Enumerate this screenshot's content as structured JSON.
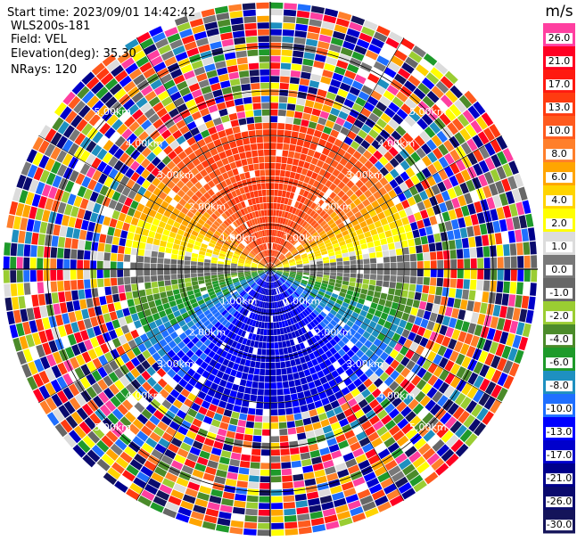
{
  "header": {
    "start_time": "Start time: 2023/09/01 14:42:42",
    "instrument": "WLS200s-181",
    "field": "Field: VEL",
    "elevation": "Elevation(deg): 35.30",
    "nrays": "NRays: 120"
  },
  "chart_data": {
    "type": "heatmap",
    "projection": "polar-ppi",
    "n_rays": 120,
    "max_range_km": 6.0,
    "range_rings_km": [
      1,
      2,
      3,
      4,
      5
    ],
    "range_labels": [
      "1.00km",
      "2.00km",
      "3.00km",
      "4.00km",
      "5.00km"
    ],
    "azimuth_lines_deg": [
      0,
      30,
      60,
      90,
      120,
      150,
      180,
      210,
      240,
      270,
      300,
      330
    ],
    "colorbar": {
      "unit": "m/s",
      "tick_labels": [
        "26.0",
        "21.0",
        "17.0",
        "13.0",
        "10.0",
        "8.0",
        "6.0",
        "4.0",
        "2.0",
        "1.0",
        "0.0",
        "-1.0",
        "-2.0",
        "-4.0",
        "-6.0",
        "-8.0",
        "-10.0",
        "-13.0",
        "-17.0",
        "-21.0",
        "-26.0",
        "-30.0"
      ],
      "colors": [
        "#ff3fa0",
        "#ff0022",
        "#ff1a10",
        "#ff3b10",
        "#ff5a1e",
        "#ff7f2a",
        "#ffa500",
        "#ffd400",
        "#ffff00",
        "#dcdcdc",
        "#787878",
        "#676767",
        "#9acd32",
        "#4b8b2a",
        "#1e9a2a",
        "#1e90c0",
        "#1f6fff",
        "#0000ff",
        "#0000cc",
        "#00008b",
        "#0a0a6e",
        "#14145a"
      ]
    },
    "velocity_pattern": {
      "near_range_km": 3.3,
      "near_field": "positive velocities (red/orange/yellow) in the northern half, near-zero grey band along east-west, negative velocities (green/blue) in the southern half",
      "far_field": "noisy mixed velocities beyond about 3.3 km"
    }
  }
}
